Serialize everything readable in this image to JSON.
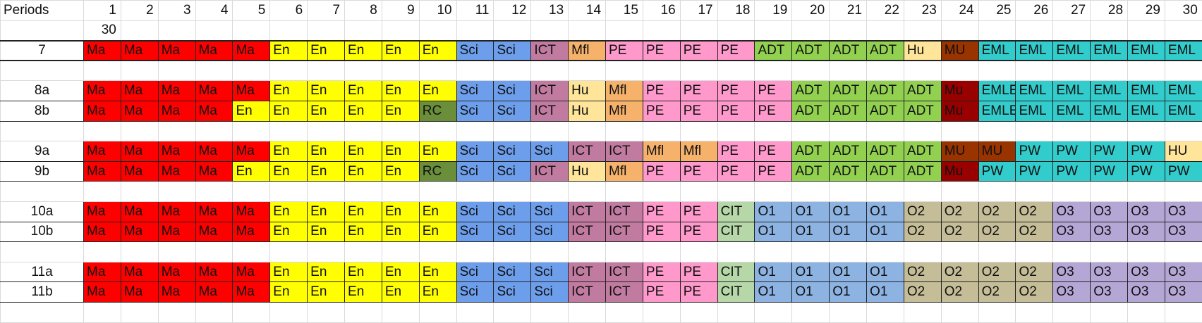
{
  "header": {
    "title": "Periods",
    "periods": [
      "1",
      "2",
      "3",
      "4",
      "5",
      "6",
      "7",
      "8",
      "9",
      "10",
      "11",
      "12",
      "13",
      "14",
      "15",
      "16",
      "17",
      "18",
      "19",
      "20",
      "21",
      "22",
      "23",
      "24",
      "25",
      "26",
      "27",
      "28",
      "29",
      "30"
    ],
    "subvalue": "30"
  },
  "colors": {
    "Ma": "#ff0000",
    "En": "#ffff00",
    "Sci": "#6d9eeb",
    "ICT": "#c27ba0",
    "Mfl": "#f6b26b",
    "PE": "#ff99cc",
    "ADT": "#92d050",
    "Hu": "#ffe599",
    "HU": "#ffe599",
    "MU": "#993300",
    "Mu": "#990000",
    "RC": "#6b8e3a",
    "EML": "#33cccc",
    "EMLE": "#33cccc",
    "PW": "#33cccc",
    "CIT": "#b6d7a8",
    "O1": "#8db3e2",
    "O2": "#c4bd97",
    "O3": "#b4a7d6"
  },
  "rows": [
    {
      "type": "header"
    },
    {
      "type": "sub"
    },
    {
      "type": "data",
      "single": true,
      "label": "7",
      "cells": [
        "Ma",
        "Ma",
        "Ma",
        "Ma",
        "Ma",
        "En",
        "En",
        "En",
        "En",
        "En",
        "Sci",
        "Sci",
        "ICT",
        "Mfl",
        "PE",
        "PE",
        "PE",
        "PE",
        "ADT",
        "ADT",
        "ADT",
        "ADT",
        "Hu",
        "MU",
        "EML",
        "EML",
        "EML",
        "EML",
        "EML",
        "EML"
      ]
    },
    {
      "type": "blank"
    },
    {
      "type": "data",
      "label": "8a",
      "cells": [
        "Ma",
        "Ma",
        "Ma",
        "Ma",
        "Ma",
        "En",
        "En",
        "En",
        "En",
        "En",
        "Sci",
        "Sci",
        "ICT",
        "Hu",
        "Mfl",
        "PE",
        "PE",
        "PE",
        "PE",
        "ADT",
        "ADT",
        "ADT",
        "ADT",
        "Mu",
        "EMLE",
        "EML",
        "EML",
        "EML",
        "EML",
        "EML"
      ]
    },
    {
      "type": "data",
      "label": "8b",
      "cells": [
        "Ma",
        "Ma",
        "Ma",
        "Ma",
        "En",
        "En",
        "En",
        "En",
        "En",
        "RC",
        "Sci",
        "Sci",
        "ICT",
        "Hu",
        "Mfl",
        "PE",
        "PE",
        "PE",
        "PE",
        "ADT",
        "ADT",
        "ADT",
        "ADT",
        "Mu",
        "EMLE",
        "EML",
        "EML",
        "EML",
        "EML",
        "EML"
      ]
    },
    {
      "type": "blank"
    },
    {
      "type": "data",
      "label": "9a",
      "cells": [
        "Ma",
        "Ma",
        "Ma",
        "Ma",
        "Ma",
        "En",
        "En",
        "En",
        "En",
        "En",
        "Sci",
        "Sci",
        "Sci",
        "ICT",
        "ICT",
        "Mfl",
        "Mfl",
        "PE",
        "PE",
        "ADT",
        "ADT",
        "ADT",
        "ADT",
        "MU",
        "MU",
        "PW",
        "PW",
        "PW",
        "PW",
        "HU"
      ]
    },
    {
      "type": "data",
      "label": "9b",
      "cells": [
        "Ma",
        "Ma",
        "Ma",
        "Ma",
        "En",
        "En",
        "En",
        "En",
        "En",
        "RC",
        "Sci",
        "Sci",
        "ICT",
        "Hu",
        "Mfl",
        "PE",
        "PE",
        "PE",
        "PE",
        "ADT",
        "ADT",
        "ADT",
        "ADT",
        "Mu",
        "PW",
        "PW",
        "PW",
        "PW",
        "PW",
        "PW"
      ]
    },
    {
      "type": "blank"
    },
    {
      "type": "data",
      "label": "10a",
      "cells": [
        "Ma",
        "Ma",
        "Ma",
        "Ma",
        "Ma",
        "En",
        "En",
        "En",
        "En",
        "En",
        "Sci",
        "Sci",
        "Sci",
        "ICT",
        "ICT",
        "PE",
        "PE",
        "CIT",
        "O1",
        "O1",
        "O1",
        "O1",
        "O2",
        "O2",
        "O2",
        "O2",
        "O3",
        "O3",
        "O3",
        "O3"
      ]
    },
    {
      "type": "data",
      "label": "10b",
      "cells": [
        "Ma",
        "Ma",
        "Ma",
        "Ma",
        "Ma",
        "En",
        "En",
        "En",
        "En",
        "En",
        "Sci",
        "Sci",
        "Sci",
        "ICT",
        "ICT",
        "PE",
        "PE",
        "CIT",
        "O1",
        "O1",
        "O1",
        "O1",
        "O2",
        "O2",
        "O2",
        "O2",
        "O3",
        "O3",
        "O3",
        "O3"
      ]
    },
    {
      "type": "blank"
    },
    {
      "type": "data",
      "label": "11a",
      "cells": [
        "Ma",
        "Ma",
        "Ma",
        "Ma",
        "Ma",
        "En",
        "En",
        "En",
        "En",
        "En",
        "Sci",
        "Sci",
        "Sci",
        "ICT",
        "ICT",
        "PE",
        "PE",
        "CIT",
        "O1",
        "O1",
        "O1",
        "O1",
        "O2",
        "O2",
        "O2",
        "O2",
        "O3",
        "O3",
        "O3",
        "O3"
      ]
    },
    {
      "type": "data",
      "label": "11b",
      "cells": [
        "Ma",
        "Ma",
        "Ma",
        "Ma",
        "Ma",
        "En",
        "En",
        "En",
        "En",
        "En",
        "Sci",
        "Sci",
        "Sci",
        "ICT",
        "ICT",
        "PE",
        "PE",
        "CIT",
        "O1",
        "O1",
        "O1",
        "O1",
        "O2",
        "O2",
        "O2",
        "O2",
        "O3",
        "O3",
        "O3",
        "O3"
      ]
    },
    {
      "type": "blank"
    }
  ]
}
